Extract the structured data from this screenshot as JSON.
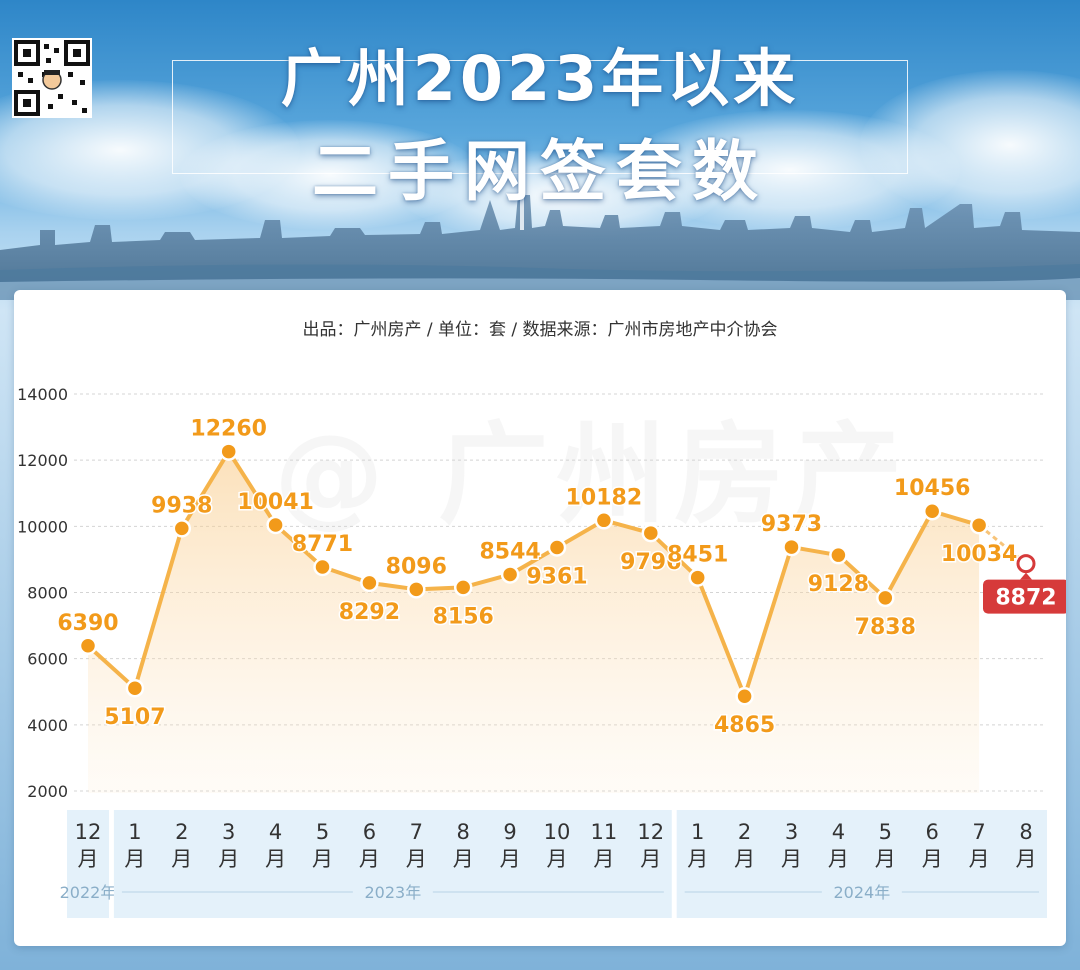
{
  "header": {
    "title_line1": "广州2023年以来",
    "title_line2": "二手网签套数"
  },
  "source_line": "出品：广州房产 / 单位：套 / 数据来源：广州市房地产中介协会",
  "watermark": "@ 广州房产",
  "colors": {
    "line": "#f5b34a",
    "point": "#f29a1a",
    "label": "#f29a1a",
    "highlight": "#d63a3a",
    "axis_band": "#e4f1fa"
  },
  "chart_data": {
    "type": "line",
    "title": "广州2023年以来二手网签套数",
    "unit": "套",
    "categories": [
      "12月",
      "1月",
      "2月",
      "3月",
      "4月",
      "5月",
      "6月",
      "7月",
      "8月",
      "9月",
      "10月",
      "11月",
      "12月",
      "1月",
      "2月",
      "3月",
      "4月",
      "5月",
      "6月",
      "7月",
      "8月"
    ],
    "month_numbers": [
      "12",
      "1",
      "2",
      "3",
      "4",
      "5",
      "6",
      "7",
      "8",
      "9",
      "10",
      "11",
      "12",
      "1",
      "2",
      "3",
      "4",
      "5",
      "6",
      "7",
      "8"
    ],
    "month_suffix": "月",
    "year_groups": [
      {
        "label": "2022年",
        "start": 0,
        "end": 0
      },
      {
        "label": "2023年",
        "start": 1,
        "end": 12
      },
      {
        "label": "2024年",
        "start": 13,
        "end": 20
      }
    ],
    "values": [
      6390,
      5107,
      9938,
      12260,
      10041,
      8771,
      8292,
      8096,
      8156,
      8544,
      9361,
      10182,
      9796,
      8451,
      4865,
      9373,
      9128,
      7838,
      10456,
      10034,
      8872
    ],
    "label_below": [
      false,
      true,
      false,
      false,
      false,
      false,
      true,
      false,
      true,
      false,
      true,
      false,
      true,
      false,
      true,
      false,
      true,
      true,
      false,
      true,
      false
    ],
    "highlight_last": true,
    "ylim": [
      2000,
      14000
    ],
    "yticks": [
      2000,
      4000,
      6000,
      8000,
      10000,
      12000,
      14000
    ],
    "grid": true
  }
}
